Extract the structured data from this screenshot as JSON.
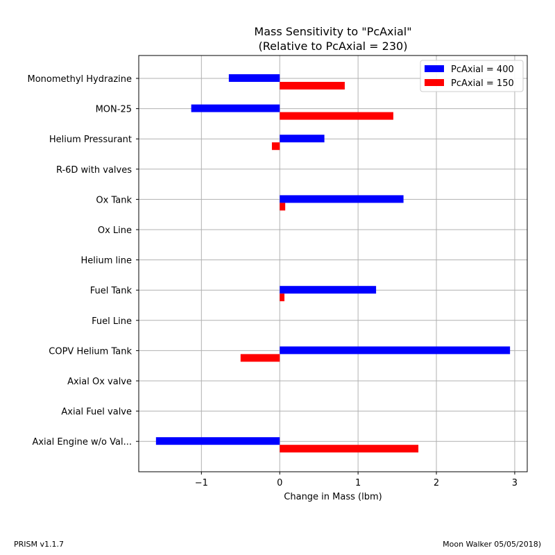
{
  "footer": {
    "version": "PRISM v1.1.7",
    "credit": "Moon Walker 05/05/2018)"
  },
  "chart_data": {
    "type": "bar",
    "orientation": "horizontal",
    "title": "Mass Sensitivity to \"PcAxial\"",
    "subtitle": "(Relative to PcAxial = 230)",
    "xlabel": "Change in Mass (lbm)",
    "ylabel": "",
    "xlim": [
      -1.8,
      3.16
    ],
    "xticks": [
      -1,
      0,
      1,
      2,
      3
    ],
    "xtick_labels": [
      "−1",
      "0",
      "1",
      "2",
      "3"
    ],
    "grid": true,
    "legend_position": "top-right",
    "categories": [
      "Monomethyl Hydrazine",
      "MON-25",
      "Helium Pressurant",
      "R-6D with valves",
      "Ox Tank",
      "Ox Line",
      "Helium line",
      "Fuel Tank",
      "Fuel Line",
      "COPV Helium Tank",
      "Axial Ox valve",
      "Axial Fuel valve",
      "Axial Engine w/o Val..."
    ],
    "series": [
      {
        "name": "PcAxial = 400",
        "color": "#0000ff",
        "values": [
          -0.65,
          -1.13,
          0.57,
          0,
          1.58,
          0,
          0,
          1.23,
          0,
          2.94,
          0,
          0,
          -1.58
        ]
      },
      {
        "name": "PcAxial = 150",
        "color": "#ff0000",
        "values": [
          0.83,
          1.45,
          -0.1,
          0,
          0.07,
          0,
          0,
          0.06,
          0,
          -0.5,
          0,
          0,
          1.77
        ]
      }
    ]
  }
}
